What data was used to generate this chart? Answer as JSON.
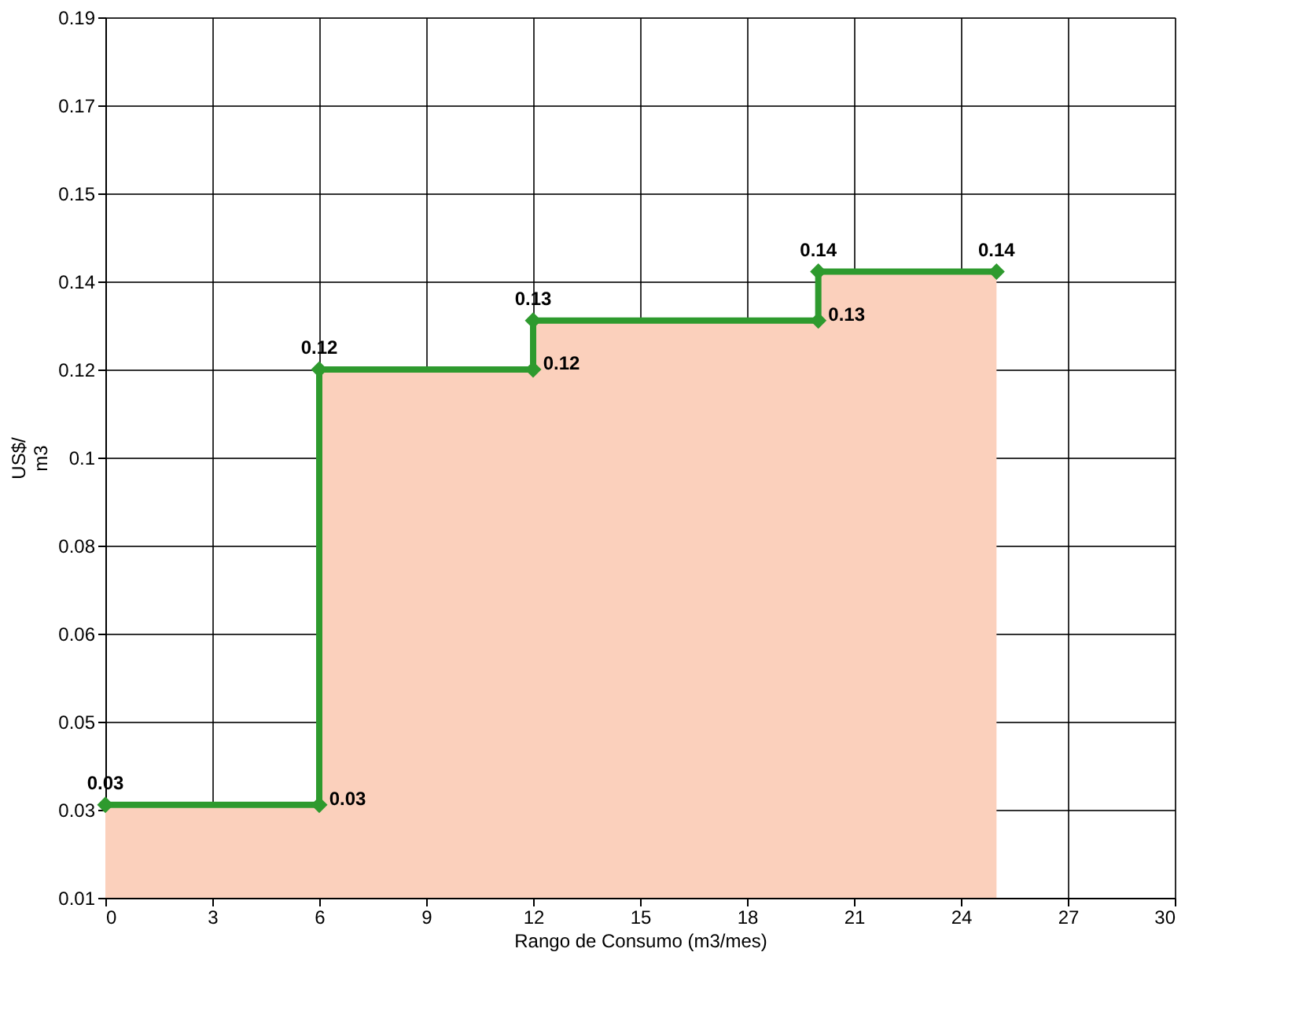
{
  "chart_data": {
    "type": "line",
    "xlabel": "Rango de Consumo (m3/mes)",
    "ylabel": "US$/\nm3",
    "xlim": [
      0,
      30
    ],
    "xticks": [
      0,
      3,
      6,
      9,
      12,
      15,
      18,
      21,
      24,
      27,
      30
    ],
    "ylim": [
      0.01,
      0.19
    ],
    "yticks": [
      {
        "value": 0.01,
        "label": "0.01"
      },
      {
        "value": 0.028,
        "label": "0.03"
      },
      {
        "value": 0.046,
        "label": "0.05"
      },
      {
        "value": 0.064,
        "label": "0.06"
      },
      {
        "value": 0.082,
        "label": "0.08"
      },
      {
        "value": 0.1,
        "label": "0.1"
      },
      {
        "value": 0.118,
        "label": "0.12"
      },
      {
        "value": 0.136,
        "label": "0.14"
      },
      {
        "value": 0.154,
        "label": "0.15"
      },
      {
        "value": 0.172,
        "label": "0.17"
      },
      {
        "value": 0.19,
        "label": "0.19"
      }
    ],
    "grid": true,
    "series": [
      {
        "type": "area",
        "color": "#fbd0bc",
        "x": [
          0,
          6,
          6,
          12,
          12,
          20,
          20,
          25
        ],
        "values": [
          0.029,
          0.029,
          0.118,
          0.118,
          0.128,
          0.128,
          0.138,
          0.138
        ]
      },
      {
        "color": "#2e9a2e",
        "marker": "diamond",
        "line_style": "solid",
        "x": [
          0,
          6,
          6,
          12,
          12,
          20,
          20,
          25
        ],
        "values": [
          0.029,
          0.029,
          0.118,
          0.118,
          0.128,
          0.128,
          0.138,
          0.138
        ],
        "value_labels": [
          "0.03",
          "0.03",
          "0.12",
          "0.12",
          "0.13",
          "0.13",
          "0.14",
          "0.14"
        ]
      }
    ]
  }
}
